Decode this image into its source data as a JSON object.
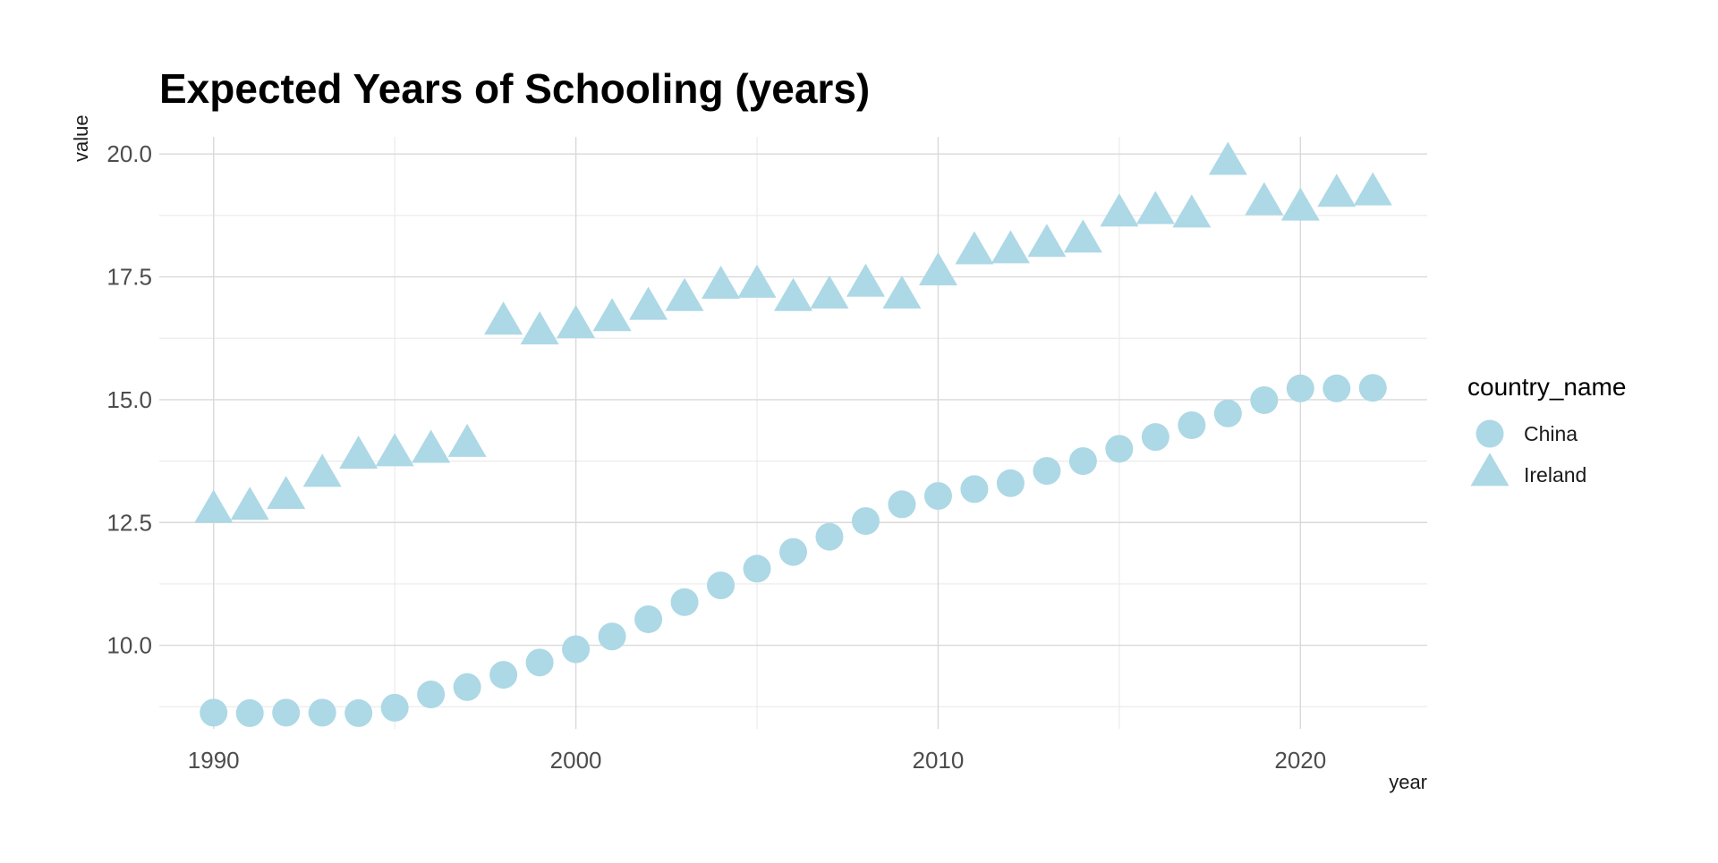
{
  "chart_data": {
    "type": "scatter",
    "title": "Expected Years of Schooling (years)",
    "xlabel": "year",
    "ylabel": "value",
    "xlim": [
      1988.5,
      2023.5
    ],
    "ylim": [
      8.3,
      20.35
    ],
    "x_ticks": [
      1990,
      2000,
      2010,
      2020
    ],
    "x_minor_ticks": [
      1995,
      2005,
      2015
    ],
    "y_ticks": [
      10.0,
      12.5,
      15.0,
      17.5,
      20.0
    ],
    "y_tick_labels": [
      "10.0",
      "12.5",
      "15.0",
      "17.5",
      "20.0"
    ],
    "y_minor_ticks": [
      8.75,
      11.25,
      13.75,
      16.25,
      18.75
    ],
    "grid": true,
    "legend": {
      "title": "country_name",
      "position": "right"
    },
    "marker_color": "#add8e6",
    "series": [
      {
        "name": "China",
        "marker": "circle",
        "x": [
          1990,
          1991,
          1992,
          1993,
          1994,
          1995,
          1996,
          1997,
          1998,
          1999,
          2000,
          2001,
          2002,
          2003,
          2004,
          2005,
          2006,
          2007,
          2008,
          2009,
          2010,
          2011,
          2012,
          2013,
          2014,
          2015,
          2016,
          2017,
          2018,
          2019,
          2020,
          2021,
          2022
        ],
        "y": [
          8.63,
          8.62,
          8.63,
          8.63,
          8.62,
          8.73,
          9.0,
          9.15,
          9.4,
          9.65,
          9.92,
          10.18,
          10.53,
          10.88,
          11.22,
          11.56,
          11.9,
          12.21,
          12.53,
          12.87,
          13.04,
          13.18,
          13.3,
          13.55,
          13.75,
          14.0,
          14.24,
          14.48,
          14.72,
          14.99,
          15.23,
          15.23,
          15.24
        ]
      },
      {
        "name": "Ireland",
        "marker": "triangle",
        "x": [
          1990,
          1991,
          1992,
          1993,
          1994,
          1995,
          1996,
          1997,
          1998,
          1999,
          2000,
          2001,
          2002,
          2003,
          2004,
          2005,
          2006,
          2007,
          2008,
          2009,
          2010,
          2011,
          2012,
          2013,
          2014,
          2015,
          2016,
          2017,
          2018,
          2019,
          2020,
          2021,
          2022
        ],
        "y": [
          12.72,
          12.78,
          13.0,
          13.45,
          13.82,
          13.87,
          13.94,
          14.06,
          16.55,
          16.35,
          16.48,
          16.62,
          16.85,
          17.03,
          17.28,
          17.3,
          17.03,
          17.08,
          17.32,
          17.08,
          17.55,
          17.98,
          18.0,
          18.13,
          18.22,
          18.75,
          18.8,
          18.73,
          19.8,
          18.98,
          18.87,
          19.15,
          19.18
        ]
      }
    ]
  }
}
